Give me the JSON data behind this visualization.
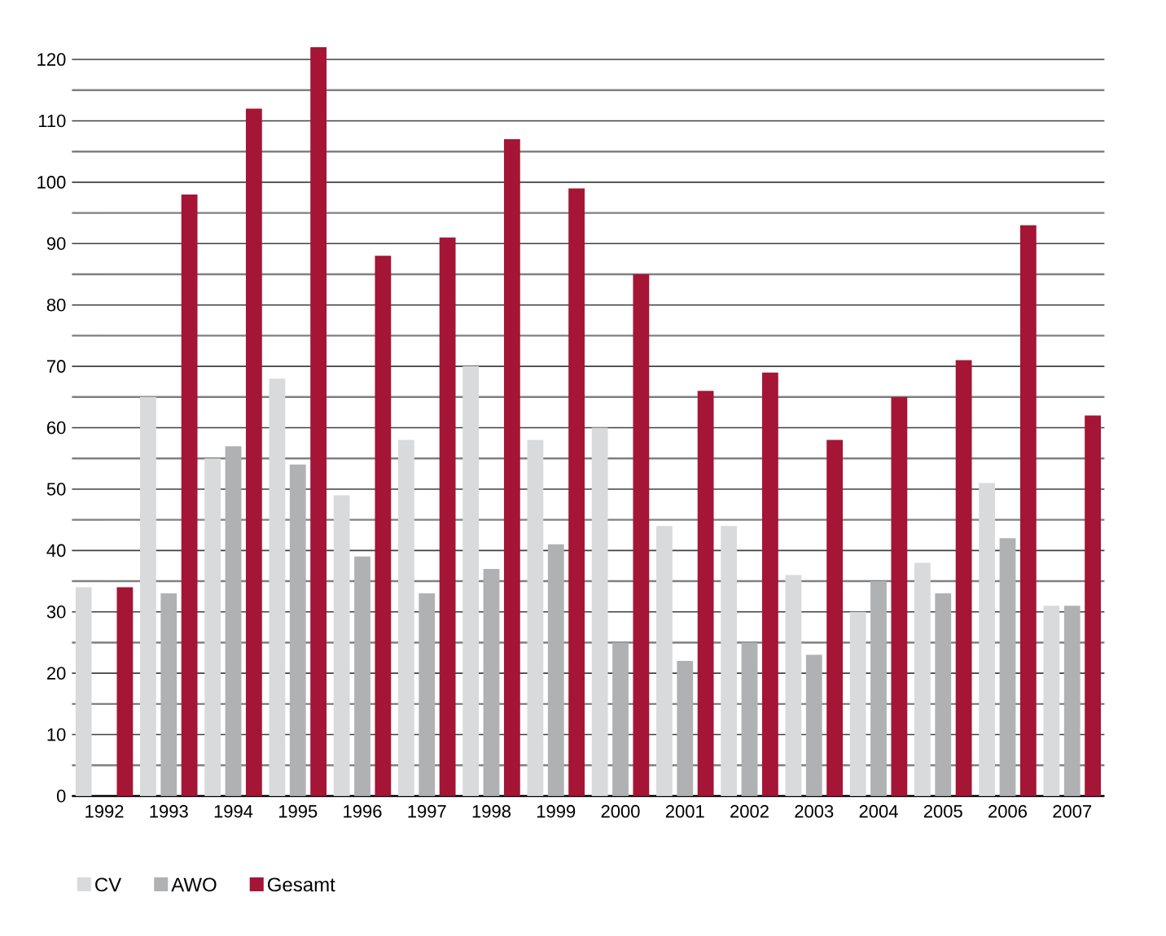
{
  "chart_data": {
    "type": "bar",
    "categories": [
      "1992",
      "1993",
      "1994",
      "1995",
      "1996",
      "1997",
      "1998",
      "1999",
      "2000",
      "2001",
      "2002",
      "2003",
      "2004",
      "2005",
      "2006",
      "2007"
    ],
    "series": [
      {
        "name": "CV",
        "color": "#d9dadc",
        "values": [
          34,
          65,
          55,
          68,
          49,
          58,
          70,
          58,
          60,
          44,
          44,
          36,
          30,
          38,
          51,
          31
        ]
      },
      {
        "name": "AWO",
        "color": "#b0b1b3",
        "values": [
          0,
          33,
          57,
          54,
          39,
          33,
          37,
          41,
          25,
          22,
          25,
          23,
          35,
          33,
          42,
          31
        ]
      },
      {
        "name": "Gesamt",
        "color": "#a51535",
        "values": [
          34,
          98,
          112,
          122,
          88,
          91,
          107,
          99,
          85,
          66,
          69,
          58,
          65,
          71,
          93,
          62
        ]
      }
    ],
    "ylim": [
      0,
      122
    ],
    "yticks": [
      0,
      10,
      20,
      30,
      40,
      50,
      60,
      70,
      80,
      90,
      100,
      110,
      120
    ],
    "grid": "y",
    "legend": "bottom left"
  }
}
